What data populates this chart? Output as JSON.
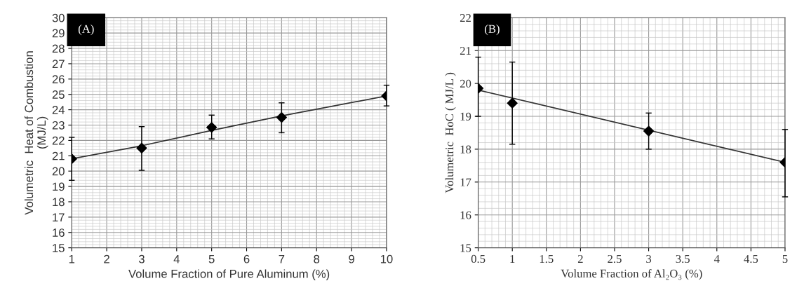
{
  "chart_data": [
    {
      "type": "scatter",
      "xlabel": "Volume Fraction of Pure Aluminum (%)",
      "ylabel": "Volumetric  Heat of Combustion\n(MJ/L)",
      "annotations": [
        "(A)"
      ],
      "xlim": [
        1,
        10
      ],
      "xticks": [
        1,
        2,
        3,
        4,
        5,
        6,
        7,
        8,
        9,
        10
      ],
      "ylim": [
        15,
        30
      ],
      "yticks": [
        15,
        16,
        17,
        18,
        19,
        20,
        21,
        22,
        23,
        24,
        25,
        26,
        27,
        28,
        29,
        30
      ],
      "grid": true,
      "series": [
        {
          "marker": "diamond",
          "color": "#000000",
          "x": [
            1,
            3,
            5,
            7,
            10
          ],
          "values": [
            20.8,
            21.5,
            22.85,
            23.5,
            24.9
          ],
          "errors": [
            [
              19.4,
              22.2
            ],
            [
              20.05,
              22.9
            ],
            [
              22.1,
              23.65
            ],
            [
              22.5,
              24.45
            ],
            [
              24.25,
              25.6
            ]
          ]
        },
        {
          "type": "line",
          "color": "#333333",
          "x": [
            1,
            3,
            5,
            7,
            10
          ],
          "values": [
            20.8,
            21.65,
            22.65,
            23.6,
            24.9
          ]
        }
      ]
    },
    {
      "type": "scatter",
      "xlabel": "Volume Fraction of Al₂O₃ (%)",
      "ylabel": "Volumetric  HoC ( MJ/L )",
      "annotations": [
        "(B)"
      ],
      "xlim": [
        0.5,
        5
      ],
      "xticks": [
        0.5,
        1,
        1.5,
        2,
        2.5,
        3,
        3.5,
        4,
        4.5,
        5
      ],
      "ylim": [
        15,
        22
      ],
      "yticks": [
        15,
        16,
        17,
        18,
        19,
        20,
        21,
        22
      ],
      "grid": true,
      "series": [
        {
          "marker": "diamond",
          "color": "#000000",
          "x": [
            0.5,
            1,
            3,
            5
          ],
          "values": [
            19.85,
            19.4,
            18.55,
            17.6
          ],
          "errors": [
            [
              19.0,
              20.8
            ],
            [
              18.15,
              20.65
            ],
            [
              18.0,
              19.1
            ],
            [
              16.55,
              18.6
            ]
          ]
        },
        {
          "type": "line",
          "color": "#333333",
          "x": [
            0.5,
            5
          ],
          "values": [
            19.8,
            17.6
          ]
        }
      ]
    }
  ]
}
